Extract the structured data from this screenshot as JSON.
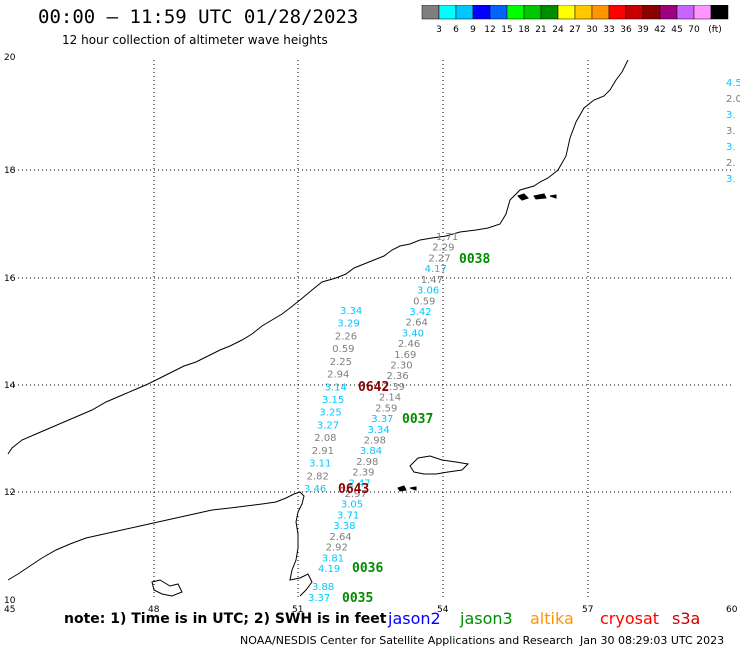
{
  "header": {
    "title": "00:00 – 11:59 UTC 01/28/2023",
    "subtitle": "12 hour collection of altimeter wave heights"
  },
  "legend_scale": {
    "colors": [
      "#7f7f7f",
      "#00ffff",
      "#00c8ff",
      "#0000ff",
      "#0064ff",
      "#00ff00",
      "#00c800",
      "#008c00",
      "#ffff00",
      "#ffc800",
      "#ff9600",
      "#ff0000",
      "#c80000",
      "#8b0000",
      "#a0007f",
      "#c864ff",
      "#ff96ff",
      "#000000"
    ],
    "labels": [
      "3",
      "6",
      "9",
      "12",
      "15",
      "18",
      "21",
      "24",
      "27",
      "30",
      "33",
      "36",
      "39",
      "42",
      "45",
      "70",
      "(ft)"
    ]
  },
  "axes": {
    "lon_labels": [
      "45",
      "48",
      "51",
      "54",
      "57",
      "60"
    ],
    "lat_labels": [
      "20",
      "18",
      "16",
      "14",
      "12",
      "10"
    ]
  },
  "track_times": [
    {
      "label": "0038",
      "color": "#008c00"
    },
    {
      "label": "0037",
      "color": "#008c00"
    },
    {
      "label": "0036",
      "color": "#008c00"
    },
    {
      "label": "0035",
      "color": "#008c00"
    },
    {
      "label": "0642",
      "color": "#8b0000"
    },
    {
      "label": "0643",
      "color": "#8b0000"
    }
  ],
  "track_a": {
    "values": [
      "1.71",
      "2.29",
      "2.27",
      "4.17",
      "1.47",
      "3.06",
      "0.59",
      "3.42",
      "2.64",
      "3.40",
      "2.46",
      "1.69",
      "2.30",
      "2.36",
      "2.39",
      "2.14",
      "2.59",
      "3.37",
      "3.34",
      "2.98",
      "3.84",
      "2.98",
      "2.39",
      "2.47",
      "2.97",
      "3.05",
      "3.71",
      "3.38",
      "2.64",
      "2.92",
      "3.81",
      "4.19"
    ],
    "colors": [
      "#7f7f7f",
      "#7f7f7f",
      "#7f7f7f",
      "#00c8ff",
      "#7f7f7f",
      "#00c8ff",
      "#7f7f7f",
      "#00c8ff",
      "#7f7f7f",
      "#00c8ff",
      "#7f7f7f",
      "#7f7f7f",
      "#7f7f7f",
      "#7f7f7f",
      "#7f7f7f",
      "#7f7f7f",
      "#7f7f7f",
      "#00c8ff",
      "#00c8ff",
      "#7f7f7f",
      "#00c8ff",
      "#7f7f7f",
      "#7f7f7f",
      "#00c8ff",
      "#7f7f7f",
      "#00c8ff",
      "#00c8ff",
      "#00c8ff",
      "#7f7f7f",
      "#7f7f7f",
      "#00c8ff",
      "#00c8ff"
    ]
  },
  "track_b": {
    "values": [
      "3.34",
      "3.29",
      "2.26",
      "0.59",
      "2.25",
      "2.94",
      "3.14",
      "3.15",
      "3.25",
      "3.27",
      "2.08",
      "2.91",
      "3.11",
      "2.82",
      "3.46"
    ],
    "colors": [
      "#00c8ff",
      "#00c8ff",
      "#7f7f7f",
      "#7f7f7f",
      "#7f7f7f",
      "#7f7f7f",
      "#00c8ff",
      "#00c8ff",
      "#00c8ff",
      "#00c8ff",
      "#7f7f7f",
      "#7f7f7f",
      "#00c8ff",
      "#7f7f7f",
      "#00c8ff"
    ]
  },
  "track_c": {
    "values": [
      "3.88",
      "3.37"
    ],
    "colors": [
      "#00c8ff",
      "#00c8ff"
    ]
  },
  "edge_values": [
    "4.5",
    "2.0",
    "3.",
    "3.",
    "3.",
    "2.",
    "3."
  ],
  "footer": {
    "note": "note:  1) Time is in UTC;  2) SWH is in feet",
    "satellites": [
      {
        "name": "jason2",
        "color": "#0000ff"
      },
      {
        "name": "jason3",
        "color": "#008c00"
      },
      {
        "name": "altika",
        "color": "#ff9600"
      },
      {
        "name": "cryosat",
        "color": "#ff0000"
      },
      {
        "name": "s3a",
        "color": "#c80000"
      }
    ],
    "credit": "NOAA/NESDIS Center for Satellite Applications and Research",
    "timestamp": "Jan 30 08:29:03 UTC 2023"
  }
}
